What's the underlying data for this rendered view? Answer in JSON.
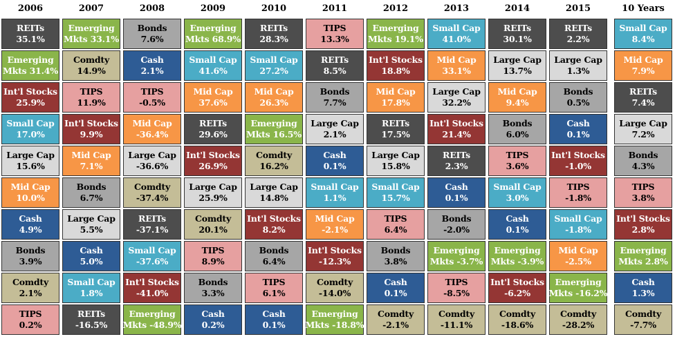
{
  "colors": {
    "REITs": "#4d4d4d",
    "Emerging": "#8ab54a",
    "Intl": "#943634",
    "SmallCap": "#4bacc6",
    "LargeCap": "#d9d9d9",
    "MidCap": "#f79646",
    "Cash": "#2e5c95",
    "Bonds": "#a6a6a6",
    "Comdty": "#c4bd97",
    "TIPS": "#e6a0a0"
  },
  "chart_data": {
    "type": "table",
    "columns": [
      {
        "header": "2006",
        "cells": [
          {
            "line1": "REITs",
            "line2": "35.1%",
            "asset": "REITs",
            "value": 35.1
          },
          {
            "line1": "Emerging",
            "line2": "Mkts 31.4%",
            "asset": "Emerging",
            "value": 31.4
          },
          {
            "line1": "Int'l Stocks",
            "line2": "25.9%",
            "asset": "Intl",
            "value": 25.9
          },
          {
            "line1": "Small Cap",
            "line2": "17.0%",
            "asset": "SmallCap",
            "value": 17.0
          },
          {
            "line1": "Large Cap",
            "line2": "15.6%",
            "asset": "LargeCap",
            "value": 15.6
          },
          {
            "line1": "Mid Cap",
            "line2": "10.0%",
            "asset": "MidCap",
            "value": 10.0
          },
          {
            "line1": "Cash",
            "line2": "4.9%",
            "asset": "Cash",
            "value": 4.9
          },
          {
            "line1": "Bonds",
            "line2": "3.9%",
            "asset": "Bonds",
            "value": 3.9
          },
          {
            "line1": "Comdty",
            "line2": "2.1%",
            "asset": "Comdty",
            "value": 2.1
          },
          {
            "line1": "TIPS",
            "line2": "0.2%",
            "asset": "TIPS",
            "value": 0.2
          }
        ]
      },
      {
        "header": "2007",
        "cells": [
          {
            "line1": "Emerging",
            "line2": "Mkts 33.1%",
            "asset": "Emerging",
            "value": 33.1
          },
          {
            "line1": "Comdty",
            "line2": "14.9%",
            "asset": "Comdty",
            "value": 14.9
          },
          {
            "line1": "TIPS",
            "line2": "11.9%",
            "asset": "TIPS",
            "value": 11.9
          },
          {
            "line1": "Int'l Stocks",
            "line2": "9.9%",
            "asset": "Intl",
            "value": 9.9
          },
          {
            "line1": "Mid Cap",
            "line2": "7.1%",
            "asset": "MidCap",
            "value": 7.1
          },
          {
            "line1": "Bonds",
            "line2": "6.7%",
            "asset": "Bonds",
            "value": 6.7
          },
          {
            "line1": "Large Cap",
            "line2": "5.5%",
            "asset": "LargeCap",
            "value": 5.5
          },
          {
            "line1": "Cash",
            "line2": "5.0%",
            "asset": "Cash",
            "value": 5.0
          },
          {
            "line1": "Small Cap",
            "line2": "1.8%",
            "asset": "SmallCap",
            "value": 1.8
          },
          {
            "line1": "REITs",
            "line2": "-16.5%",
            "asset": "REITs",
            "value": -16.5
          }
        ]
      },
      {
        "header": "2008",
        "cells": [
          {
            "line1": "Bonds",
            "line2": "7.6%",
            "asset": "Bonds",
            "value": 7.6
          },
          {
            "line1": "Cash",
            "line2": "2.1%",
            "asset": "Cash",
            "value": 2.1
          },
          {
            "line1": "TIPS",
            "line2": "-0.5%",
            "asset": "TIPS",
            "value": -0.5
          },
          {
            "line1": "Mid Cap",
            "line2": "-36.4%",
            "asset": "MidCap",
            "value": -36.4
          },
          {
            "line1": "Large Cap",
            "line2": "-36.6%",
            "asset": "LargeCap",
            "value": -36.6
          },
          {
            "line1": "Comdty",
            "line2": "-37.4%",
            "asset": "Comdty",
            "value": -37.4
          },
          {
            "line1": "REITs",
            "line2": "-37.1%",
            "asset": "REITs",
            "value": -37.1
          },
          {
            "line1": "Small Cap",
            "line2": "-37.6%",
            "asset": "SmallCap",
            "value": -37.6
          },
          {
            "line1": "Int'l Stocks",
            "line2": "-41.0%",
            "asset": "Intl",
            "value": -41.0
          },
          {
            "line1": "Emerging",
            "line2": "Mkts -48.9%",
            "asset": "Emerging",
            "value": -48.9
          }
        ]
      },
      {
        "header": "2009",
        "cells": [
          {
            "line1": "Emerging",
            "line2": "Mkts 68.9%",
            "asset": "Emerging",
            "value": 68.9
          },
          {
            "line1": "Small Cap",
            "line2": "41.6%",
            "asset": "SmallCap",
            "value": 41.6
          },
          {
            "line1": "Mid Cap",
            "line2": "37.6%",
            "asset": "MidCap",
            "value": 37.6
          },
          {
            "line1": "REITs",
            "line2": "29.6%",
            "asset": "REITs",
            "value": 29.6
          },
          {
            "line1": "Int'l Stocks",
            "line2": "26.9%",
            "asset": "Intl",
            "value": 26.9
          },
          {
            "line1": "Large Cap",
            "line2": "25.9%",
            "asset": "LargeCap",
            "value": 25.9
          },
          {
            "line1": "Comdty",
            "line2": "20.1%",
            "asset": "Comdty",
            "value": 20.1
          },
          {
            "line1": "TIPS",
            "line2": "8.9%",
            "asset": "TIPS",
            "value": 8.9
          },
          {
            "line1": "Bonds",
            "line2": "3.3%",
            "asset": "Bonds",
            "value": 3.3
          },
          {
            "line1": "Cash",
            "line2": "0.2%",
            "asset": "Cash",
            "value": 0.2
          }
        ]
      },
      {
        "header": "2010",
        "cells": [
          {
            "line1": "REITs",
            "line2": "28.3%",
            "asset": "REITs",
            "value": 28.3
          },
          {
            "line1": "Small Cap",
            "line2": "27.2%",
            "asset": "SmallCap",
            "value": 27.2
          },
          {
            "line1": "Mid Cap",
            "line2": "26.3%",
            "asset": "MidCap",
            "value": 26.3
          },
          {
            "line1": "Emerging",
            "line2": "Mkts 16.5%",
            "asset": "Emerging",
            "value": 16.5
          },
          {
            "line1": "Comdty",
            "line2": "16.2%",
            "asset": "Comdty",
            "value": 16.2
          },
          {
            "line1": "Large Cap",
            "line2": "14.8%",
            "asset": "LargeCap",
            "value": 14.8
          },
          {
            "line1": "Int'l Stocks",
            "line2": "8.2%",
            "asset": "Intl",
            "value": 8.2
          },
          {
            "line1": "Bonds",
            "line2": "6.4%",
            "asset": "Bonds",
            "value": 6.4
          },
          {
            "line1": "TIPS",
            "line2": "6.1%",
            "asset": "TIPS",
            "value": 6.1
          },
          {
            "line1": "Cash",
            "line2": "0.1%",
            "asset": "Cash",
            "value": 0.1
          }
        ]
      },
      {
        "header": "2011",
        "cells": [
          {
            "line1": "TIPS",
            "line2": "13.3%",
            "asset": "TIPS",
            "value": 13.3
          },
          {
            "line1": "REITs",
            "line2": "8.5%",
            "asset": "REITs",
            "value": 8.5
          },
          {
            "line1": "Bonds",
            "line2": "7.7%",
            "asset": "Bonds",
            "value": 7.7
          },
          {
            "line1": "Large Cap",
            "line2": "2.1%",
            "asset": "LargeCap",
            "value": 2.1
          },
          {
            "line1": "Cash",
            "line2": "0.1%",
            "asset": "Cash",
            "value": 0.1
          },
          {
            "line1": "Small Cap",
            "line2": "1.1%",
            "asset": "SmallCap",
            "value": 1.1
          },
          {
            "line1": "Mid Cap",
            "line2": "-2.1%",
            "asset": "MidCap",
            "value": -2.1
          },
          {
            "line1": "Int'l Stocks",
            "line2": "-12.3%",
            "asset": "Intl",
            "value": -12.3
          },
          {
            "line1": "Comdty",
            "line2": "-14.0%",
            "asset": "Comdty",
            "value": -14.0
          },
          {
            "line1": "Emerging",
            "line2": "Mkts -18.8%",
            "asset": "Emerging",
            "value": -18.8
          }
        ]
      },
      {
        "header": "2012",
        "cells": [
          {
            "line1": "Emerging",
            "line2": "Mkts 19.1%",
            "asset": "Emerging",
            "value": 19.1
          },
          {
            "line1": "Int'l Stocks",
            "line2": "18.8%",
            "asset": "Intl",
            "value": 18.8
          },
          {
            "line1": "Mid Cap",
            "line2": "17.8%",
            "asset": "MidCap",
            "value": 17.8
          },
          {
            "line1": "REITs",
            "line2": "17.5%",
            "asset": "REITs",
            "value": 17.5
          },
          {
            "line1": "Large Cap",
            "line2": "15.8%",
            "asset": "LargeCap",
            "value": 15.8
          },
          {
            "line1": "Small Cap",
            "line2": "15.7%",
            "asset": "SmallCap",
            "value": 15.7
          },
          {
            "line1": "TIPS",
            "line2": "6.4%",
            "asset": "TIPS",
            "value": 6.4
          },
          {
            "line1": "Bonds",
            "line2": "3.8%",
            "asset": "Bonds",
            "value": 3.8
          },
          {
            "line1": "Cash",
            "line2": "0.1%",
            "asset": "Cash",
            "value": 0.1
          },
          {
            "line1": "Comdty",
            "line2": "-2.1%",
            "asset": "Comdty",
            "value": -2.1
          }
        ]
      },
      {
        "header": "2013",
        "cells": [
          {
            "line1": "Small Cap",
            "line2": "41.0%",
            "asset": "SmallCap",
            "value": 41.0
          },
          {
            "line1": "Mid Cap",
            "line2": "33.1%",
            "asset": "MidCap",
            "value": 33.1
          },
          {
            "line1": "Large Cap",
            "line2": "32.2%",
            "asset": "LargeCap",
            "value": 32.2
          },
          {
            "line1": "Int'l Stocks",
            "line2": "21.4%",
            "asset": "Intl",
            "value": 21.4
          },
          {
            "line1": "REITs",
            "line2": "2.3%",
            "asset": "REITs",
            "value": 2.3
          },
          {
            "line1": "Cash",
            "line2": "0.1%",
            "asset": "Cash",
            "value": 0.1
          },
          {
            "line1": "Bonds",
            "line2": "-2.0%",
            "asset": "Bonds",
            "value": -2.0
          },
          {
            "line1": "Emerging",
            "line2": "Mkts -3.7%",
            "asset": "Emerging",
            "value": -3.7
          },
          {
            "line1": "TIPS",
            "line2": "-8.5%",
            "asset": "TIPS",
            "value": -8.5
          },
          {
            "line1": "Comdty",
            "line2": "-11.1%",
            "asset": "Comdty",
            "value": -11.1
          }
        ]
      },
      {
        "header": "2014",
        "cells": [
          {
            "line1": "REITs",
            "line2": "30.1%",
            "asset": "REITs",
            "value": 30.1
          },
          {
            "line1": "Large Cap",
            "line2": "13.7%",
            "asset": "LargeCap",
            "value": 13.7
          },
          {
            "line1": "Mid Cap",
            "line2": "9.4%",
            "asset": "MidCap",
            "value": 9.4
          },
          {
            "line1": "Bonds",
            "line2": "6.0%",
            "asset": "Bonds",
            "value": 6.0
          },
          {
            "line1": "TIPS",
            "line2": "3.6%",
            "asset": "TIPS",
            "value": 3.6
          },
          {
            "line1": "Small Cap",
            "line2": "3.0%",
            "asset": "SmallCap",
            "value": 3.0
          },
          {
            "line1": "Cash",
            "line2": "0.1%",
            "asset": "Cash",
            "value": 0.1
          },
          {
            "line1": "Emerging",
            "line2": "Mkts -3.9%",
            "asset": "Emerging",
            "value": -3.9
          },
          {
            "line1": "Int'l Stocks",
            "line2": "-6.2%",
            "asset": "Intl",
            "value": -6.2
          },
          {
            "line1": "Comdty",
            "line2": "-18.6%",
            "asset": "Comdty",
            "value": -18.6
          }
        ]
      },
      {
        "header": "2015",
        "cells": [
          {
            "line1": "REITs",
            "line2": "2.2%",
            "asset": "REITs",
            "value": 2.2
          },
          {
            "line1": "Large Cap",
            "line2": "1.3%",
            "asset": "LargeCap",
            "value": 1.3
          },
          {
            "line1": "Bonds",
            "line2": "0.5%",
            "asset": "Bonds",
            "value": 0.5
          },
          {
            "line1": "Cash",
            "line2": "0.1%",
            "asset": "Cash",
            "value": 0.1
          },
          {
            "line1": "Int'l Stocks",
            "line2": "-1.0%",
            "asset": "Intl",
            "value": -1.0
          },
          {
            "line1": "TIPS",
            "line2": "-1.8%",
            "asset": "TIPS",
            "value": -1.8
          },
          {
            "line1": "Small Cap",
            "line2": "-1.8%",
            "asset": "SmallCap",
            "value": -1.8
          },
          {
            "line1": "Mid Cap",
            "line2": "-2.5%",
            "asset": "MidCap",
            "value": -2.5
          },
          {
            "line1": "Emerging",
            "line2": "Mkts -16.2%",
            "asset": "Emerging",
            "value": -16.2
          },
          {
            "line1": "Comdty",
            "line2": "-28.2%",
            "asset": "Comdty",
            "value": -28.2
          }
        ]
      },
      {
        "header": "10 Years",
        "cells": [
          {
            "line1": "Small Cap",
            "line2": "8.4%",
            "asset": "SmallCap",
            "value": 8.4
          },
          {
            "line1": "Mid Cap",
            "line2": "7.9%",
            "asset": "MidCap",
            "value": 7.9
          },
          {
            "line1": "REITs",
            "line2": "7.4%",
            "asset": "REITs",
            "value": 7.4
          },
          {
            "line1": "Large Cap",
            "line2": "7.2%",
            "asset": "LargeCap",
            "value": 7.2
          },
          {
            "line1": "Bonds",
            "line2": "4.3%",
            "asset": "Bonds",
            "value": 4.3
          },
          {
            "line1": "TIPS",
            "line2": "3.8%",
            "asset": "TIPS",
            "value": 3.8
          },
          {
            "line1": "Int'l Stocks",
            "line2": "2.8%",
            "asset": "Intl",
            "value": 2.8
          },
          {
            "line1": "Emerging",
            "line2": "Mkts 2.8%",
            "asset": "Emerging",
            "value": 2.8
          },
          {
            "line1": "Cash",
            "line2": "1.3%",
            "asset": "Cash",
            "value": 1.3
          },
          {
            "line1": "Comdty",
            "line2": "-7.7%",
            "asset": "Comdty",
            "value": -7.7
          }
        ]
      }
    ]
  }
}
